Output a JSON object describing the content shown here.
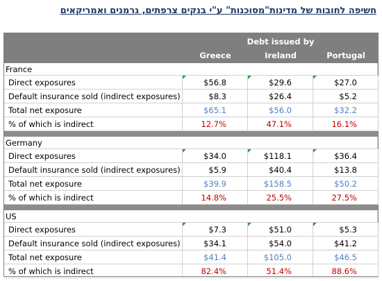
{
  "title": "חשיפה לחובות של מדינות\"מסוכנות\" ע\"י בנקים צרפתים, גרמנים ואמריקאים",
  "header": {
    "super": "Debt issued by",
    "columns": [
      "Greece",
      "Ireland",
      "Portugal"
    ]
  },
  "groups": [
    {
      "name": "France",
      "rows": [
        {
          "label": "Direct exposures",
          "values": [
            "$56.8",
            "$29.6",
            "$27.0"
          ]
        },
        {
          "label": "Default insurance sold (indirect exposures)",
          "values": [
            "$8.3",
            "$26.4",
            "$5.2"
          ]
        },
        {
          "label": "Total net exposure",
          "values": [
            "$65.1",
            "$56.0",
            "$32.2"
          ]
        },
        {
          "label": "% of which is indirect",
          "values": [
            "12.7%",
            "47.1%",
            "16.1%"
          ]
        }
      ]
    },
    {
      "name": "Germany",
      "rows": [
        {
          "label": "Direct exposures",
          "values": [
            "$34.0",
            "$118.1",
            "$36.4"
          ]
        },
        {
          "label": "Default insurance sold (indirect exposures)",
          "values": [
            "$5.9",
            "$40.4",
            "$13.8"
          ]
        },
        {
          "label": "Total net exposure",
          "values": [
            "$39.9",
            "$158.5",
            "$50.2"
          ]
        },
        {
          "label": "% of which is indirect",
          "values": [
            "14.8%",
            "25.5%",
            "27.5%"
          ]
        }
      ]
    },
    {
      "name": "US",
      "rows": [
        {
          "label": "Direct exposures",
          "values": [
            "$7.3",
            "$51.0",
            "$5.3"
          ]
        },
        {
          "label": "Default insurance sold (indirect exposures)",
          "values": [
            "$34.1",
            "$54.0",
            "$41.2"
          ]
        },
        {
          "label": "Total net exposure",
          "values": [
            "$41.4",
            "$105.0",
            "$46.5"
          ]
        },
        {
          "label": "% of which is indirect",
          "values": [
            "82.4%",
            "51.4%",
            "88.6%"
          ]
        }
      ]
    }
  ]
}
